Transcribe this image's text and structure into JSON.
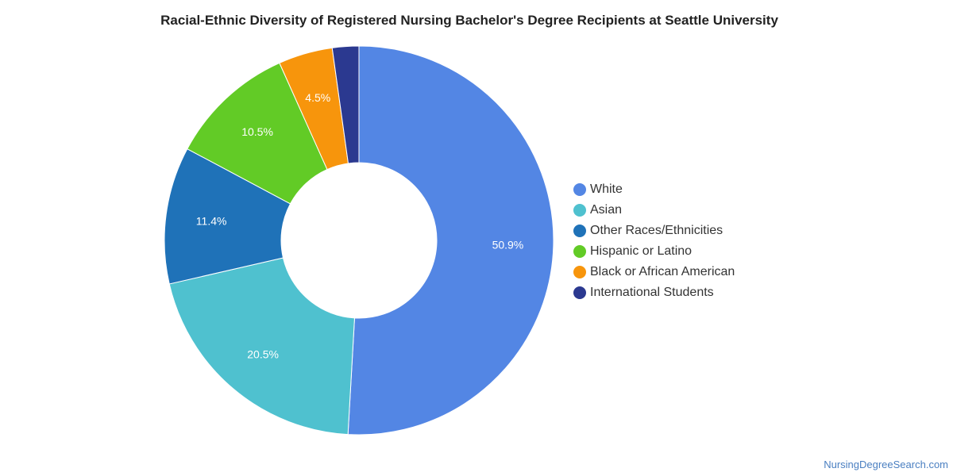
{
  "chart_data": {
    "type": "pie",
    "title": "Racial-Ethnic Diversity of Registered Nursing Bachelor's Degree Recipients at Seattle University",
    "donut": true,
    "legend_position": "right",
    "slices": [
      {
        "label": "White",
        "value": 50.9,
        "display": "50.9%",
        "color": "#5386e4"
      },
      {
        "label": "Asian",
        "value": 20.5,
        "display": "20.5%",
        "color": "#4fc1cf"
      },
      {
        "label": "Other Races/Ethnicities",
        "value": 11.4,
        "display": "11.4%",
        "color": "#1f72b8"
      },
      {
        "label": "Hispanic or Latino",
        "value": 10.5,
        "display": "10.5%",
        "color": "#62cb26"
      },
      {
        "label": "Black or African American",
        "value": 4.5,
        "display": "4.5%",
        "color": "#f7950c"
      },
      {
        "label": "International Students",
        "value": 2.2,
        "display": "",
        "color": "#2b3990"
      }
    ]
  },
  "footer": {
    "source": "NursingDegreeSearch.com"
  }
}
